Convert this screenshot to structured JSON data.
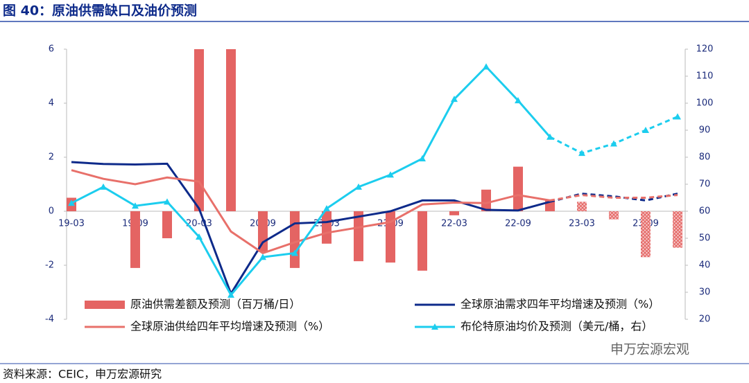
{
  "title": "图 40：原油供需缺口及油价预测",
  "source": "资料来源：CEIC，申万宏源研究",
  "watermark": "申万宏源宏观",
  "chart_data": {
    "type": "bar-line",
    "categories": [
      "19-03",
      null,
      "19-09",
      null,
      "20-03",
      null,
      "20-09",
      null,
      "21-03",
      null,
      "21-09",
      null,
      "22-03",
      null,
      "22-09",
      null,
      "23-03",
      null,
      "23-09",
      null
    ],
    "forecast_start": 16,
    "ylim": [
      -4,
      6
    ],
    "yticks": [
      -4,
      -2,
      0,
      2,
      4,
      6
    ],
    "y2lim": [
      20,
      120
    ],
    "y2ticks": [
      20,
      30,
      40,
      50,
      60,
      70,
      80,
      90,
      100,
      110,
      120
    ],
    "series": [
      {
        "name": "原油供需差额及预测（百万桶/日）",
        "type": "bar",
        "color": "#e46463",
        "values": [
          0.5,
          0,
          -2.1,
          -1.0,
          6,
          6,
          -1.5,
          -2.1,
          -1.2,
          -1.85,
          -1.9,
          -2.2,
          -0.15,
          0.8,
          1.65,
          0.4,
          0.35,
          -0.3,
          -1.7,
          -1.35
        ]
      },
      {
        "name": "全球原油需求四年平均增速及预测（%）",
        "type": "line",
        "color": "#0d2a8a",
        "values": [
          1.82,
          1.75,
          1.73,
          1.76,
          0.1,
          -3.05,
          -1.15,
          -0.45,
          -0.4,
          -0.2,
          0.0,
          0.4,
          0.4,
          0.05,
          0.03,
          0.35,
          0.65,
          0.55,
          0.4,
          0.65
        ]
      },
      {
        "name": "全球原油供给四年平均增速及预测（%）",
        "type": "line",
        "color": "#e8706a",
        "values": [
          1.52,
          1.2,
          1.0,
          1.25,
          1.1,
          -0.75,
          -1.55,
          -1.15,
          -0.8,
          -0.6,
          -0.4,
          0.25,
          0.32,
          0.3,
          0.6,
          0.4,
          0.6,
          0.5,
          0.5,
          0.6
        ]
      },
      {
        "name": "布伦特原油均价及预测（美元/桶，右）",
        "type": "line",
        "axis": "y2",
        "marker": "triangle",
        "color": "#1ccdee",
        "values": [
          63,
          69,
          62,
          63.5,
          50.5,
          29,
          43,
          44.5,
          61,
          69,
          73.5,
          79.5,
          101.5,
          113.5,
          101,
          87.5,
          81.5,
          85,
          90,
          95
        ]
      }
    ]
  }
}
